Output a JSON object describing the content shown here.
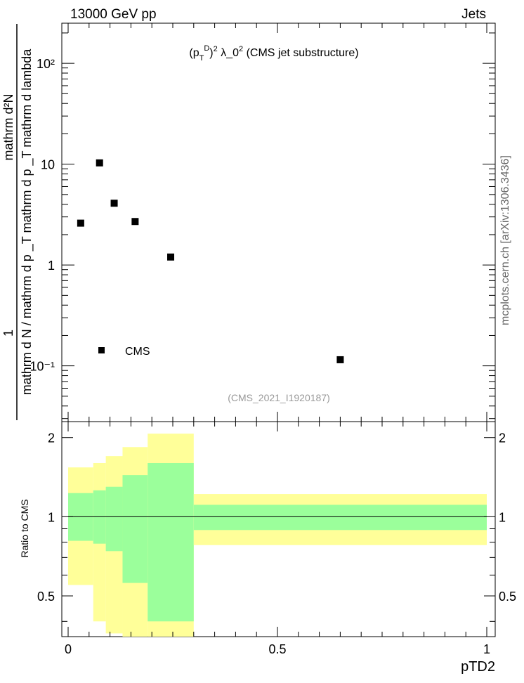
{
  "header": {
    "left": "13000 GeV pp",
    "right": "Jets"
  },
  "side_label": "mcplots.cern.ch [arXiv:1306.3436]",
  "analysis_id": "(CMS_2021_I1920187)",
  "chart_data": [
    {
      "type": "scatter",
      "title": "(p_T^D)^2 λ_0^2 (CMS jet substructure)",
      "ylabel_numerator": "1",
      "ylabel_denominator": "mathrm d N / mathrm d p _T mathrm d p _T mathrm d lambda",
      "ylabel_upper": "mathrm d²N",
      "yscale": "log",
      "ylim": [
        0.028,
        250
      ],
      "xlim": [
        -0.02,
        1.02
      ],
      "y_ticks": [
        "10⁻¹",
        "1",
        "10",
        "10²"
      ],
      "legend": {
        "label": "CMS",
        "placement": "bottom-left"
      },
      "series": [
        {
          "name": "CMS",
          "x": [
            0.03,
            0.075,
            0.11,
            0.16,
            0.245,
            0.65
          ],
          "y": [
            2.6,
            10.3,
            4.1,
            2.7,
            1.2,
            0.115
          ]
        }
      ]
    },
    {
      "type": "area",
      "ylabel": "Ratio to CMS",
      "xlabel": "pTD2",
      "ylim": [
        0.35,
        2.3
      ],
      "xlim": [
        -0.02,
        1.02
      ],
      "x_ticks": [
        "0",
        "0.5",
        "1"
      ],
      "y_ticks": [
        "0.5",
        "1",
        "2"
      ],
      "bins": [
        {
          "x0": 0.0,
          "x1": 0.06,
          "inner": [
            0.81,
            1.23
          ],
          "outer": [
            0.55,
            1.54
          ]
        },
        {
          "x0": 0.06,
          "x1": 0.09,
          "inner": [
            0.79,
            1.26
          ],
          "outer": [
            0.4,
            1.6
          ]
        },
        {
          "x0": 0.09,
          "x1": 0.13,
          "inner": [
            0.74,
            1.3
          ],
          "outer": [
            0.36,
            1.7
          ]
        },
        {
          "x0": 0.13,
          "x1": 0.19,
          "inner": [
            0.56,
            1.44
          ],
          "outer": [
            0.35,
            1.84
          ]
        },
        {
          "x0": 0.19,
          "x1": 0.3,
          "inner": [
            0.4,
            1.6
          ],
          "outer": [
            0.35,
            2.07
          ]
        },
        {
          "x0": 0.3,
          "x1": 1.0,
          "inner": [
            0.89,
            1.11
          ],
          "outer": [
            0.78,
            1.22
          ]
        }
      ],
      "reference": 1.0,
      "colors": {
        "inner": "#9bff9b",
        "outer": "#ffff99"
      }
    }
  ]
}
